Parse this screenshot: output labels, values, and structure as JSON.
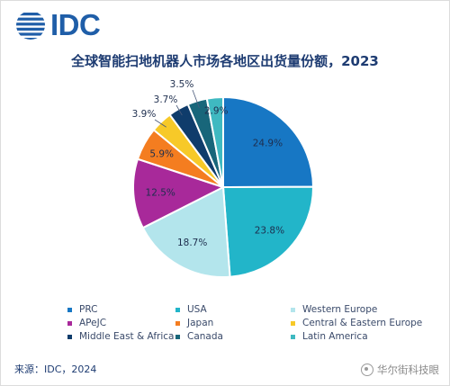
{
  "logo": {
    "text": "IDC"
  },
  "chart_data": {
    "type": "pie",
    "title": "全球智能扫地机器人市场各地区出货量份额，2023",
    "unit": "%",
    "slices": [
      {
        "name": "PRC",
        "value": 24.9,
        "label": "24.9%",
        "color": "#1777c4"
      },
      {
        "name": "USA",
        "value": 23.8,
        "label": "23.8%",
        "color": "#22b5c9"
      },
      {
        "name": "Western Europe",
        "value": 18.7,
        "label": "18.7%",
        "color": "#b3e5ec"
      },
      {
        "name": "APeJC",
        "value": 12.5,
        "label": "12.5%",
        "color": "#a8299a"
      },
      {
        "name": "Japan",
        "value": 5.9,
        "label": "5.9%",
        "color": "#f47d20"
      },
      {
        "name": "Central & Eastern Europe",
        "value": 3.9,
        "label": "3.9%",
        "color": "#f7c928"
      },
      {
        "name": "Middle East & Africa",
        "value": 3.7,
        "label": "3.7%",
        "color": "#0f3c6b"
      },
      {
        "name": "Canada",
        "value": 3.5,
        "label": "3.5%",
        "color": "#18667a"
      },
      {
        "name": "Latin America",
        "value": 2.9,
        "label": "2.9%",
        "color": "#3fb9c1"
      }
    ],
    "legend_placement": "bottom"
  },
  "source": "来源：IDC，2024",
  "watermark": "华尔街科技眼"
}
